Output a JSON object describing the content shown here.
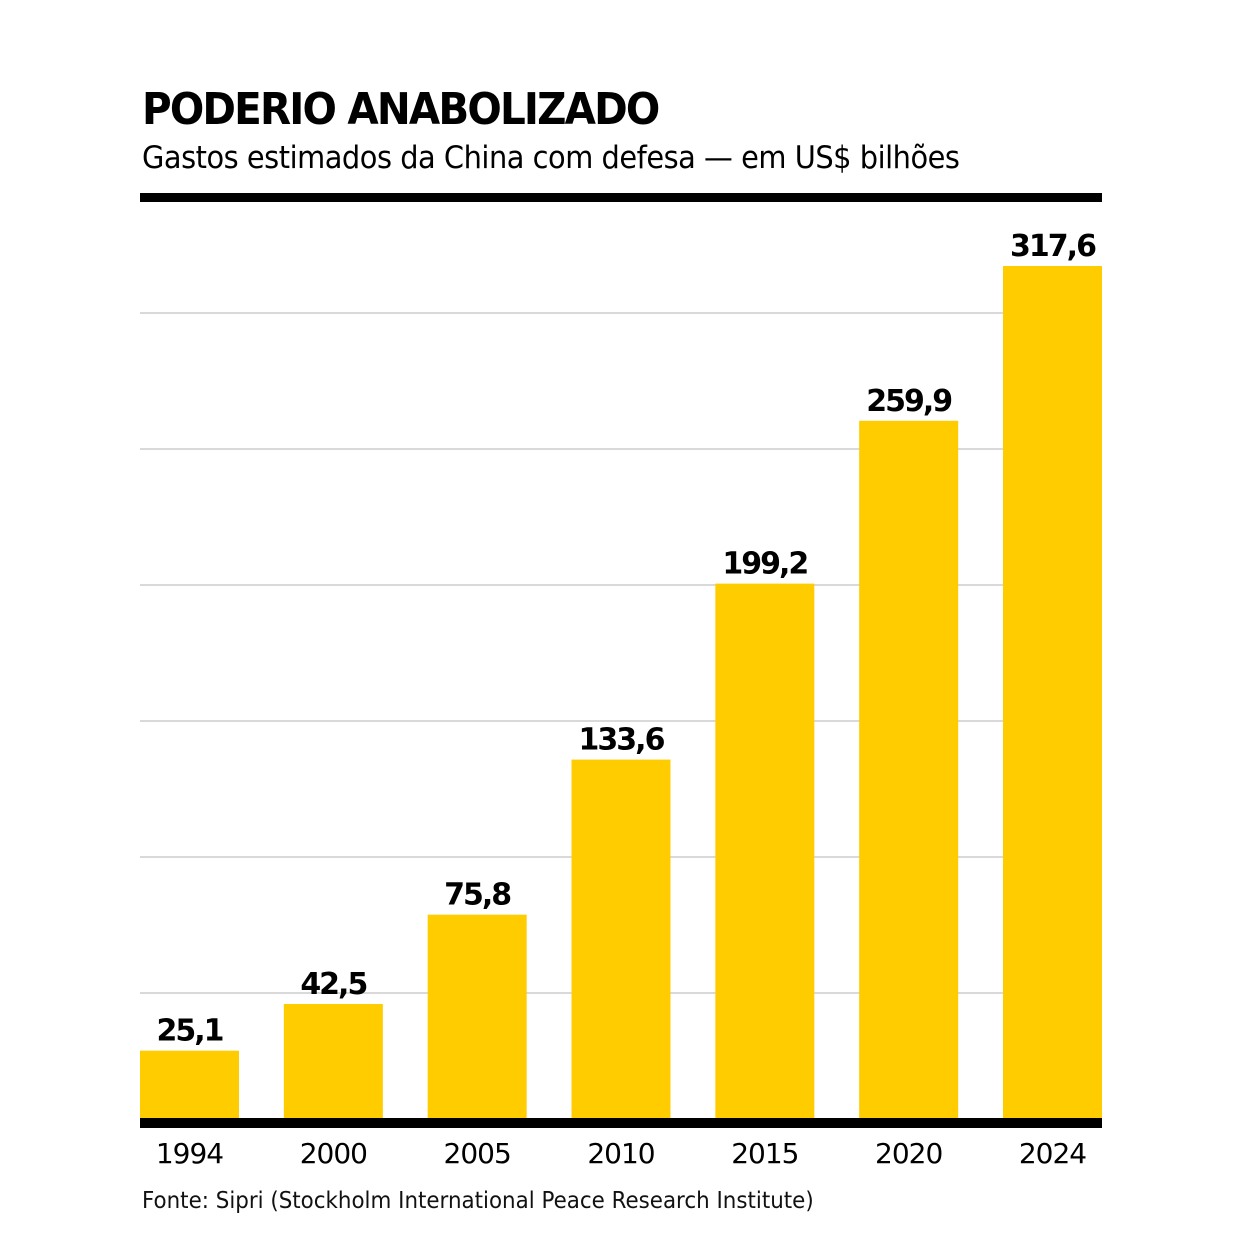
{
  "header": {
    "title": "PODERIO ANABOLIZADO",
    "subtitle": "Gastos estimados da China com defesa — em US$ bilhões"
  },
  "footer": {
    "source": "Fonte: Sipri (Stockholm International Peace Research Institute)"
  },
  "colors": {
    "bar": "#FFCC00",
    "baseline": "#000000",
    "grid": "#D9D9D9",
    "text": "#000000"
  },
  "chart_data": {
    "type": "bar",
    "title": "PODERIO ANABOLIZADO",
    "subtitle": "Gastos estimados da China com defesa — em US$ bilhões",
    "xlabel": "",
    "ylabel": "US$ bilhões",
    "categories": [
      "1994",
      "2000",
      "2005",
      "2010",
      "2015",
      "2020",
      "2024"
    ],
    "values": [
      25.1,
      42.5,
      75.8,
      133.6,
      199.2,
      259.9,
      317.6
    ],
    "value_labels": [
      "25,1",
      "42,5",
      "75,8",
      "133,6",
      "199,2",
      "259,9",
      "317,6"
    ],
    "ylim": [
      0,
      317.6
    ],
    "grid": true,
    "gridline_count": 6,
    "legend": "none",
    "source": "Fonte: Sipri (Stockholm International Peace Research Institute)"
  }
}
